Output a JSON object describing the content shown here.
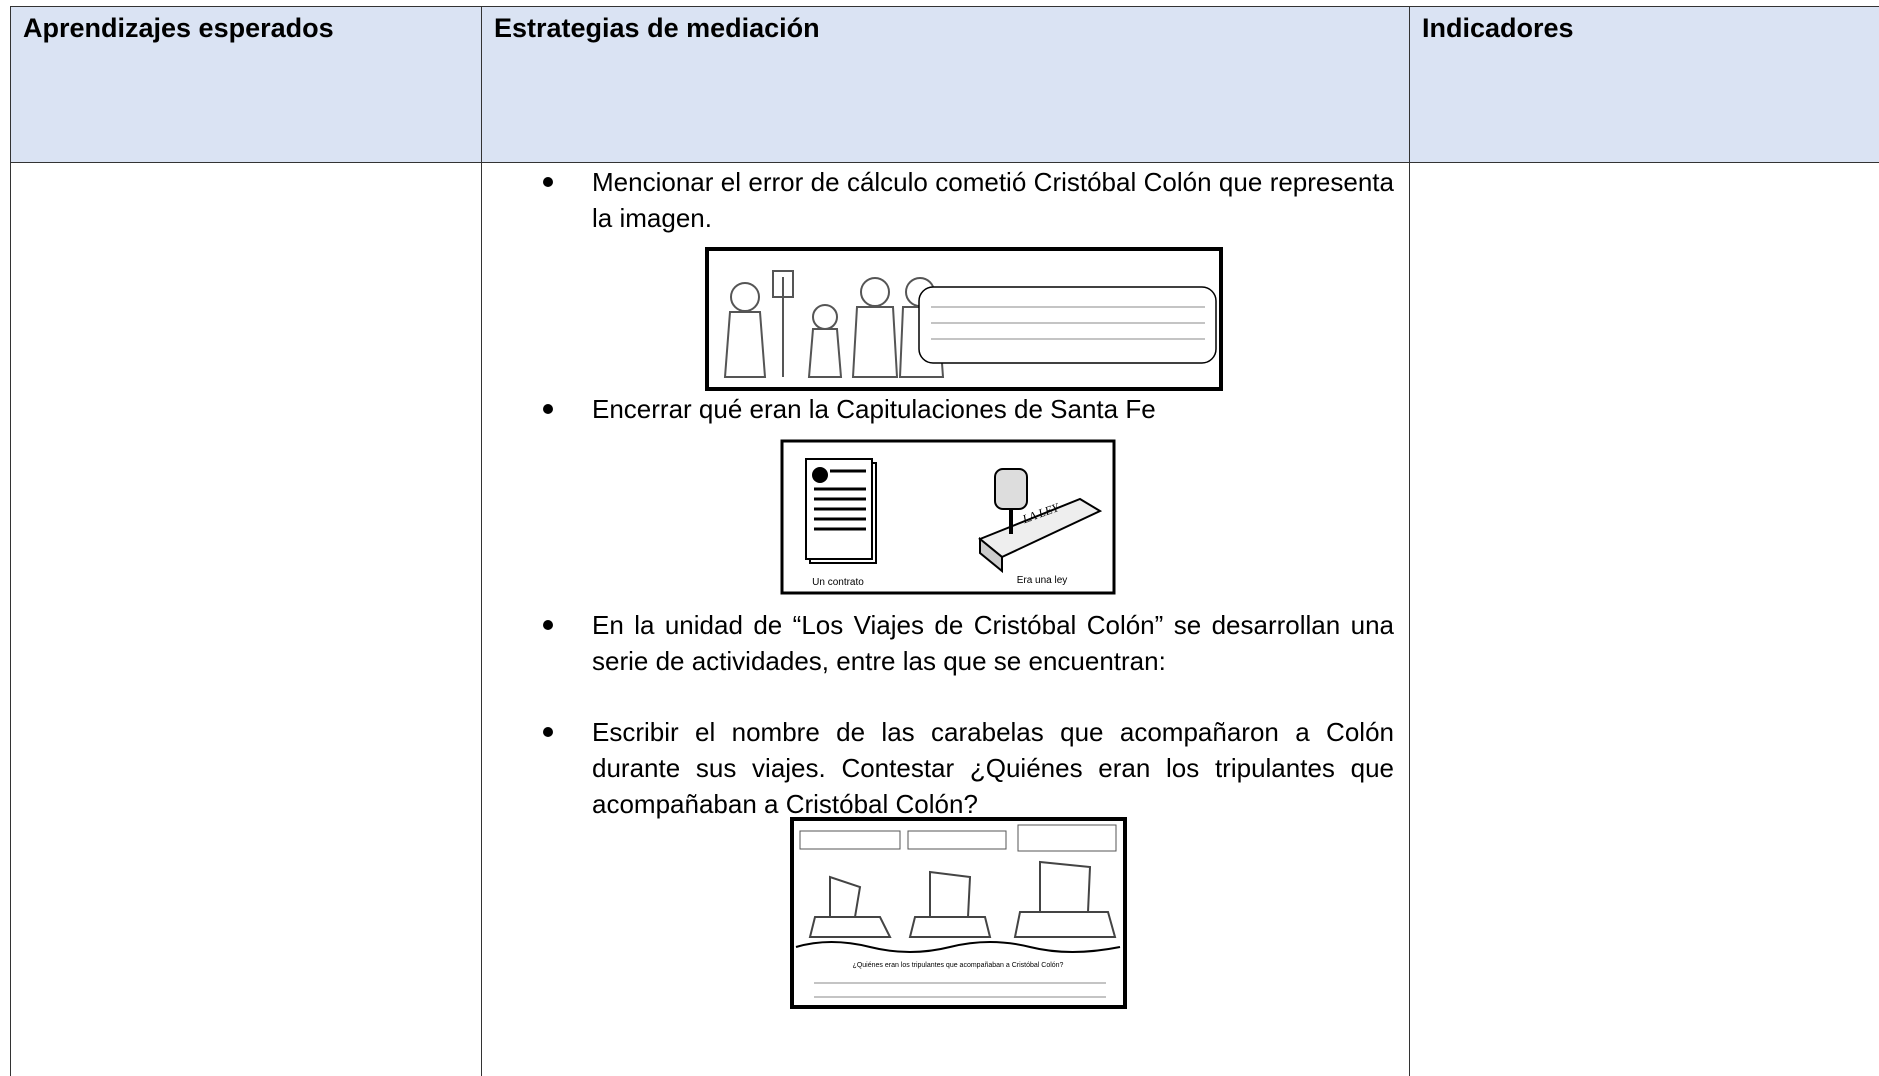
{
  "table": {
    "headers": [
      "Aprendizajes esperados",
      "Estrategias de mediación",
      "Indicadores"
    ],
    "bullets": [
      "Mencionar el error de cálculo cometió Cristóbal Colón que representa la imagen.",
      "Encerrar qué eran la Capitulaciones de Santa Fe",
      "En la unidad de “Los Viajes de Cristóbal Colón” se desarrollan una serie de actividades, entre las que se encuentran:",
      "Escribir el nombre de las carabelas que acompañaron a Colón durante sus viajes. Contestar ¿Quiénes eran los tripulantes que acompañaban a Cristóbal Colón?"
    ]
  },
  "images": {
    "contract_label": "Un contrato",
    "law_label": "Era una ley",
    "book_title": "LA LEY",
    "ships_question": "¿Quiénes eran los tripulantes que acompañaban a Cristóbal Colón?"
  }
}
